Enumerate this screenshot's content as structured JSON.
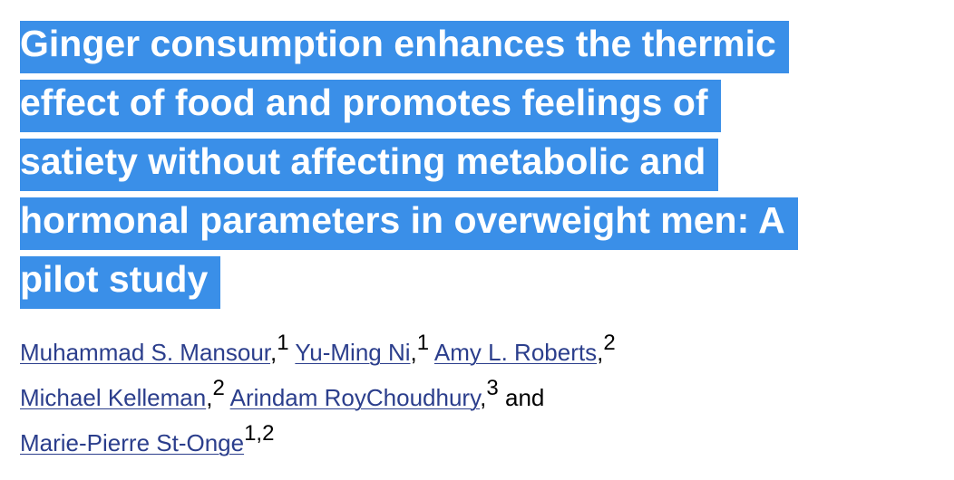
{
  "title_lines": [
    "Ginger consumption enhances the thermic",
    "effect of food and promotes feelings of",
    "satiety without affecting metabolic and",
    "hormonal parameters in overweight men: A",
    "pilot study"
  ],
  "author_lines": [
    [
      {
        "name": "Muhammad S. Mansour",
        "punct": ",",
        "sup": "1"
      },
      {
        "name": "Yu-Ming Ni",
        "punct": ",",
        "sup": "1"
      },
      {
        "name": "Amy L. Roberts",
        "punct": ",",
        "sup": "2"
      }
    ],
    [
      {
        "name": "Michael Kelleman",
        "punct": ",",
        "sup": "2"
      },
      {
        "name": "Arindam RoyChoudhury",
        "punct": ",",
        "sup": "3"
      },
      {
        "conj": "and"
      }
    ],
    [
      {
        "name": "Marie-Pierre St-Onge",
        "sup": "1,2"
      }
    ]
  ]
}
